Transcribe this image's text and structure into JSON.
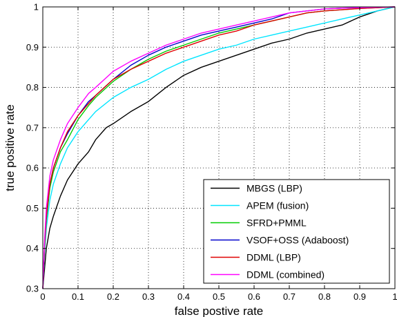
{
  "chart_data": {
    "type": "line",
    "title": "",
    "xlabel": "false postive rate",
    "ylabel": "true positive rate",
    "xlim": [
      0,
      1
    ],
    "ylim": [
      0.3,
      1
    ],
    "xticks": [
      "0",
      "0.1",
      "0.2",
      "0.3",
      "0.4",
      "0.5",
      "0.6",
      "0.7",
      "0.8",
      "0.9",
      "1"
    ],
    "yticks": [
      "0.3",
      "0.4",
      "0.5",
      "0.6",
      "0.7",
      "0.8",
      "0.9",
      "1"
    ],
    "grid": true,
    "legend_position": "bottom-right",
    "series": [
      {
        "name": "MBGS (LBP)",
        "color": "#000000",
        "x": [
          0,
          0.005,
          0.01,
          0.02,
          0.03,
          0.05,
          0.07,
          0.1,
          0.13,
          0.15,
          0.18,
          0.2,
          0.25,
          0.3,
          0.35,
          0.4,
          0.45,
          0.5,
          0.55,
          0.6,
          0.65,
          0.7,
          0.75,
          0.8,
          0.85,
          0.9,
          0.95,
          1.0
        ],
        "y": [
          0.3,
          0.35,
          0.4,
          0.45,
          0.48,
          0.53,
          0.57,
          0.61,
          0.64,
          0.67,
          0.7,
          0.71,
          0.74,
          0.765,
          0.8,
          0.83,
          0.85,
          0.865,
          0.88,
          0.895,
          0.91,
          0.92,
          0.935,
          0.945,
          0.955,
          0.975,
          0.99,
          1.0
        ]
      },
      {
        "name": "APEM (fusion)",
        "color": "#00e5ff",
        "x": [
          0,
          0.005,
          0.01,
          0.02,
          0.03,
          0.05,
          0.07,
          0.1,
          0.13,
          0.15,
          0.2,
          0.25,
          0.3,
          0.35,
          0.4,
          0.45,
          0.5,
          0.55,
          0.6,
          0.65,
          0.7,
          0.75,
          0.8,
          0.85,
          0.9,
          0.95,
          1.0
        ],
        "y": [
          0.3,
          0.39,
          0.45,
          0.52,
          0.56,
          0.61,
          0.65,
          0.69,
          0.72,
          0.74,
          0.775,
          0.8,
          0.82,
          0.845,
          0.865,
          0.88,
          0.895,
          0.905,
          0.92,
          0.93,
          0.94,
          0.95,
          0.96,
          0.97,
          0.98,
          0.99,
          1.0
        ]
      },
      {
        "name": "SFRD+PMML",
        "color": "#00cc00",
        "x": [
          0,
          0.005,
          0.01,
          0.02,
          0.03,
          0.05,
          0.07,
          0.1,
          0.13,
          0.15,
          0.2,
          0.25,
          0.3,
          0.35,
          0.4,
          0.45,
          0.5,
          0.55,
          0.6,
          0.65,
          0.7,
          0.75,
          0.8,
          0.85,
          0.9,
          0.95,
          1.0
        ],
        "y": [
          0.3,
          0.4,
          0.47,
          0.55,
          0.59,
          0.64,
          0.67,
          0.72,
          0.755,
          0.775,
          0.815,
          0.845,
          0.87,
          0.89,
          0.905,
          0.92,
          0.935,
          0.945,
          0.955,
          0.965,
          0.975,
          0.985,
          0.99,
          0.993,
          0.996,
          0.998,
          1.0
        ]
      },
      {
        "name": "VSOF+OSS (Adaboost)",
        "color": "#0000cc",
        "x": [
          0,
          0.005,
          0.01,
          0.02,
          0.03,
          0.05,
          0.07,
          0.1,
          0.13,
          0.15,
          0.2,
          0.25,
          0.3,
          0.35,
          0.4,
          0.45,
          0.5,
          0.55,
          0.6,
          0.65,
          0.7,
          0.75,
          0.8,
          0.85,
          0.9,
          0.95,
          1.0
        ],
        "y": [
          0.3,
          0.41,
          0.48,
          0.56,
          0.6,
          0.65,
          0.685,
          0.73,
          0.765,
          0.78,
          0.82,
          0.855,
          0.88,
          0.9,
          0.915,
          0.93,
          0.94,
          0.95,
          0.96,
          0.97,
          0.985,
          0.99,
          0.995,
          0.997,
          0.998,
          0.999,
          1.0
        ]
      },
      {
        "name": "DDML (LBP)",
        "color": "#e00000",
        "x": [
          0,
          0.005,
          0.01,
          0.02,
          0.03,
          0.05,
          0.07,
          0.1,
          0.13,
          0.15,
          0.2,
          0.25,
          0.3,
          0.35,
          0.4,
          0.45,
          0.5,
          0.55,
          0.6,
          0.65,
          0.7,
          0.75,
          0.8,
          0.85,
          0.9,
          0.95,
          1.0
        ],
        "y": [
          0.3,
          0.41,
          0.48,
          0.56,
          0.6,
          0.65,
          0.69,
          0.73,
          0.76,
          0.78,
          0.82,
          0.845,
          0.865,
          0.885,
          0.9,
          0.915,
          0.93,
          0.94,
          0.955,
          0.965,
          0.975,
          0.985,
          0.99,
          0.993,
          0.996,
          0.998,
          1.0
        ]
      },
      {
        "name": "DDML (combined)",
        "color": "#ff00ff",
        "x": [
          0,
          0.005,
          0.01,
          0.02,
          0.03,
          0.05,
          0.07,
          0.1,
          0.13,
          0.15,
          0.2,
          0.25,
          0.3,
          0.35,
          0.4,
          0.45,
          0.5,
          0.55,
          0.6,
          0.65,
          0.7,
          0.75,
          0.8,
          0.85,
          0.9,
          0.95,
          1.0
        ],
        "y": [
          0.3,
          0.42,
          0.5,
          0.58,
          0.62,
          0.67,
          0.71,
          0.75,
          0.785,
          0.8,
          0.84,
          0.865,
          0.885,
          0.905,
          0.92,
          0.935,
          0.945,
          0.955,
          0.965,
          0.975,
          0.985,
          0.99,
          0.995,
          0.997,
          0.998,
          0.999,
          1.0
        ]
      }
    ]
  }
}
